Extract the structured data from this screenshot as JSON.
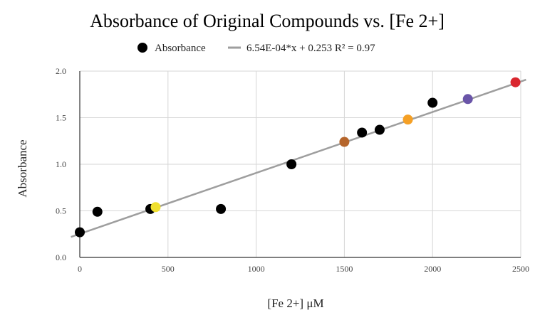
{
  "chart_data": {
    "type": "scatter",
    "title": "Absorbance of Original Compounds vs. [Fe 2+]",
    "xlabel": "[Fe 2+] μM",
    "ylabel": "Absorbance",
    "xlim": [
      0,
      2500
    ],
    "ylim": [
      0,
      2.0
    ],
    "x_ticks": [
      0,
      500,
      1000,
      1500,
      2000,
      2500
    ],
    "y_ticks": [
      0.0,
      0.5,
      1.0,
      1.5,
      2.0
    ],
    "x_tick_labels": [
      "0",
      "500",
      "1000",
      "1500",
      "2000",
      "2500"
    ],
    "y_tick_labels": [
      "0.0",
      "0.5",
      "1.0",
      "1.5",
      "2.0"
    ],
    "grid": true,
    "legend_position": "top",
    "legend": {
      "series_label": "Absorbance",
      "trendline_label": "6.54E-04*x + 0.253 R² = 0.97"
    },
    "series": [
      {
        "name": "Absorbance",
        "points": [
          {
            "x": 0,
            "y": 0.27,
            "color": "#000000"
          },
          {
            "x": 100,
            "y": 0.49,
            "color": "#000000"
          },
          {
            "x": 400,
            "y": 0.52,
            "color": "#000000"
          },
          {
            "x": 430,
            "y": 0.54,
            "color": "#f0e030"
          },
          {
            "x": 800,
            "y": 0.52,
            "color": "#000000"
          },
          {
            "x": 1200,
            "y": 1.0,
            "color": "#000000"
          },
          {
            "x": 1500,
            "y": 1.24,
            "color": "#b5652b"
          },
          {
            "x": 1600,
            "y": 1.34,
            "color": "#000000"
          },
          {
            "x": 1700,
            "y": 1.37,
            "color": "#000000"
          },
          {
            "x": 1860,
            "y": 1.48,
            "color": "#f5a025"
          },
          {
            "x": 2000,
            "y": 1.66,
            "color": "#000000"
          },
          {
            "x": 2200,
            "y": 1.7,
            "color": "#6a55a8"
          },
          {
            "x": 2470,
            "y": 1.88,
            "color": "#d9262e"
          }
        ]
      }
    ],
    "trendline": {
      "slope": 0.000654,
      "intercept": 0.253,
      "r_squared": 0.97,
      "color": "#9e9e9e"
    },
    "colors": {
      "grid": "#d6d6d6",
      "axis": "#333333",
      "marker_default": "#000000"
    }
  }
}
